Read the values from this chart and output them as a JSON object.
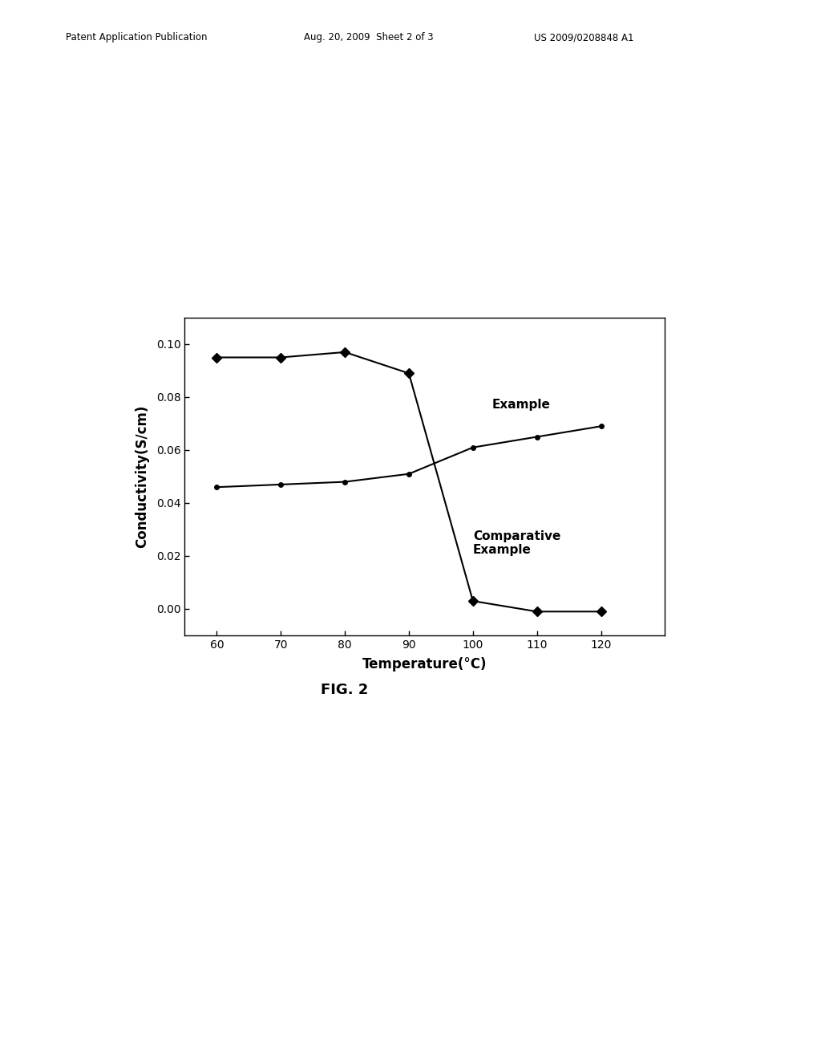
{
  "example_x": [
    60,
    70,
    80,
    90,
    100,
    110,
    120
  ],
  "example_y": [
    0.046,
    0.047,
    0.048,
    0.051,
    0.061,
    0.065,
    0.069
  ],
  "comparative_x": [
    60,
    70,
    80,
    90,
    100,
    110,
    120
  ],
  "comparative_y": [
    0.095,
    0.095,
    0.097,
    0.089,
    0.003,
    -0.001,
    -0.001
  ],
  "xlabel": "Temperature(°C)",
  "ylabel": "Conductivity(S/cm)",
  "xlim": [
    55,
    130
  ],
  "ylim": [
    -0.01,
    0.11
  ],
  "xticks": [
    60,
    70,
    80,
    90,
    100,
    110,
    120
  ],
  "yticks": [
    0.0,
    0.02,
    0.04,
    0.06,
    0.08,
    0.1
  ],
  "example_label": "Example",
  "comparative_label": "Comparative\nExample",
  "line_color": "#000000",
  "marker_circle": "o",
  "marker_diamond": "D",
  "marker_size_circle": 4,
  "marker_size_diamond": 6,
  "linewidth": 1.5,
  "header_left": "Patent Application Publication",
  "header_mid": "Aug. 20, 2009  Sheet 2 of 3",
  "header_right": "US 2009/0208848 A1",
  "fig_label": "FIG. 2",
  "background_color": "#ffffff",
  "font_size_axis_label": 12,
  "font_size_tick": 10,
  "font_size_annotation": 11,
  "font_size_header": 8.5,
  "font_size_fig_label": 13
}
